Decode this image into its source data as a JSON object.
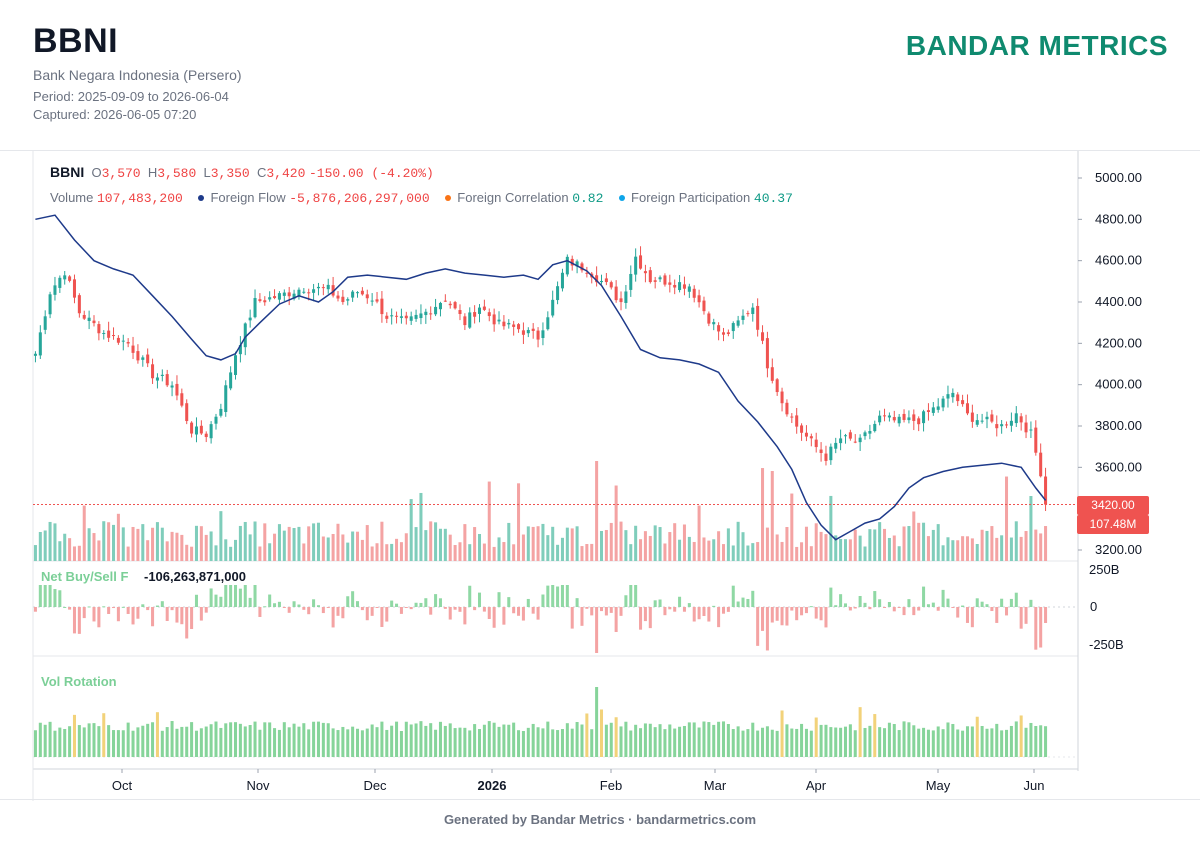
{
  "header": {
    "ticker": "BBNI",
    "company": "Bank Negara Indonesia (Persero)",
    "period": "Period: 2025-09-09 to 2026-06-04",
    "captured": "Captured: 2026-06-05 07:20",
    "brand": "BANDAR METRICS"
  },
  "legend": {
    "symbol": "BBNI",
    "o_label": "O",
    "o_value": "3,570",
    "h_label": "H",
    "h_value": "3,580",
    "l_label": "L",
    "l_value": "3,350",
    "c_label": "C",
    "c_value": "3,420",
    "change": "-150.00 (-4.20%)",
    "volume_label": "Volume",
    "volume_value": "107,483,200",
    "ff_label": "Foreign Flow",
    "ff_value": "-5,876,206,297,000",
    "fc_label": "Foreign Correlation",
    "fc_value": "0.82",
    "fp_label": "Foreign Participation",
    "fp_value": "40.37",
    "colors": {
      "ff": "#1e3a8a",
      "fc": "#f97316",
      "fp": "#0ea5e9"
    }
  },
  "panes": {
    "net_buy_sell_label": "Net Buy/Sell F",
    "net_buy_sell_value": "-106,263,871,000",
    "vol_rotation_label": "Vol Rotation"
  },
  "price_tag": "3420.00",
  "volume_tag": "107.48M",
  "footer": "Generated by Bandar Metrics · bandarmetrics.com",
  "chart_data": {
    "type": "candlestick",
    "price_axis": {
      "ticks": [
        "5000.00",
        "4800.00",
        "4600.00",
        "4400.00",
        "4200.00",
        "4000.00",
        "3800.00",
        "3600.00",
        "3200.00"
      ],
      "range": [
        3150,
        5050
      ]
    },
    "nbs_axis": {
      "ticks": [
        "250B",
        "0",
        "-250B"
      ]
    },
    "x_labels": [
      "Oct",
      "Nov",
      "Dec",
      "2026",
      "Feb",
      "Mar",
      "Apr",
      "May",
      "Jun"
    ],
    "colors": {
      "up": "#26a69a",
      "down": "#ef5350",
      "up_vol": "#7fcdbb",
      "down_vol": "#f4a3a3",
      "ff_line": "#1e3a8a",
      "rot": "#86d49a",
      "rot_hi": "#f2d27a"
    },
    "last_close": 3420,
    "anchors": [
      [
        0,
        4150
      ],
      [
        3,
        4450
      ],
      [
        6,
        4550
      ],
      [
        9,
        4350
      ],
      [
        14,
        4250
      ],
      [
        19,
        4200
      ],
      [
        24,
        4050
      ],
      [
        28,
        4000
      ],
      [
        32,
        3780
      ],
      [
        35,
        3760
      ],
      [
        38,
        3900
      ],
      [
        41,
        4150
      ],
      [
        45,
        4400
      ],
      [
        50,
        4430
      ],
      [
        55,
        4470
      ],
      [
        60,
        4460
      ],
      [
        63,
        4400
      ],
      [
        66,
        4450
      ],
      [
        69,
        4420
      ],
      [
        72,
        4330
      ],
      [
        76,
        4300
      ],
      [
        80,
        4350
      ],
      [
        84,
        4420
      ],
      [
        88,
        4300
      ],
      [
        91,
        4380
      ],
      [
        95,
        4290
      ],
      [
        99,
        4270
      ],
      [
        103,
        4230
      ],
      [
        106,
        4400
      ],
      [
        109,
        4600
      ],
      [
        113,
        4560
      ],
      [
        117,
        4480
      ],
      [
        120,
        4400
      ],
      [
        123,
        4620
      ],
      [
        126,
        4510
      ],
      [
        130,
        4500
      ],
      [
        134,
        4480
      ],
      [
        138,
        4320
      ],
      [
        141,
        4230
      ],
      [
        144,
        4300
      ],
      [
        147,
        4380
      ],
      [
        150,
        4100
      ],
      [
        153,
        3920
      ],
      [
        156,
        3800
      ],
      [
        159,
        3720
      ],
      [
        162,
        3650
      ],
      [
        165,
        3740
      ],
      [
        169,
        3720
      ],
      [
        173,
        3840
      ],
      [
        177,
        3820
      ],
      [
        181,
        3830
      ],
      [
        185,
        3900
      ],
      [
        188,
        3960
      ],
      [
        191,
        3850
      ],
      [
        195,
        3820
      ],
      [
        198,
        3800
      ],
      [
        201,
        3860
      ],
      [
        204,
        3760
      ],
      [
        206,
        3580
      ],
      [
        207,
        3420
      ]
    ],
    "ff_line": [
      [
        0,
        4800
      ],
      [
        4,
        4820
      ],
      [
        8,
        4700
      ],
      [
        12,
        4600
      ],
      [
        16,
        4560
      ],
      [
        20,
        4530
      ],
      [
        24,
        4430
      ],
      [
        28,
        4330
      ],
      [
        32,
        4220
      ],
      [
        35,
        4140
      ],
      [
        38,
        4120
      ],
      [
        41,
        4150
      ],
      [
        43,
        4230
      ],
      [
        46,
        4300
      ],
      [
        50,
        4390
      ],
      [
        54,
        4430
      ],
      [
        58,
        4400
      ],
      [
        61,
        4450
      ],
      [
        64,
        4520
      ],
      [
        68,
        4530
      ],
      [
        72,
        4520
      ],
      [
        76,
        4510
      ],
      [
        80,
        4540
      ],
      [
        84,
        4560
      ],
      [
        88,
        4540
      ],
      [
        92,
        4530
      ],
      [
        96,
        4520
      ],
      [
        100,
        4530
      ],
      [
        103,
        4510
      ],
      [
        106,
        4580
      ],
      [
        109,
        4600
      ],
      [
        113,
        4550
      ],
      [
        116,
        4480
      ],
      [
        120,
        4330
      ],
      [
        124,
        4170
      ],
      [
        128,
        4130
      ],
      [
        132,
        4120
      ],
      [
        136,
        4100
      ],
      [
        140,
        4060
      ],
      [
        144,
        3920
      ],
      [
        148,
        3820
      ],
      [
        152,
        3700
      ],
      [
        155,
        3590
      ],
      [
        158,
        3430
      ],
      [
        161,
        3320
      ],
      [
        164,
        3250
      ],
      [
        167,
        3290
      ],
      [
        170,
        3330
      ],
      [
        173,
        3350
      ],
      [
        176,
        3410
      ],
      [
        179,
        3500
      ],
      [
        182,
        3550
      ],
      [
        186,
        3580
      ],
      [
        190,
        3600
      ],
      [
        194,
        3610
      ],
      [
        198,
        3620
      ],
      [
        202,
        3600
      ],
      [
        205,
        3500
      ],
      [
        207,
        3440
      ]
    ],
    "highlight_rotation_days": [
      8,
      14,
      25,
      113,
      116,
      119,
      153,
      160,
      169,
      172,
      193,
      202
    ]
  }
}
